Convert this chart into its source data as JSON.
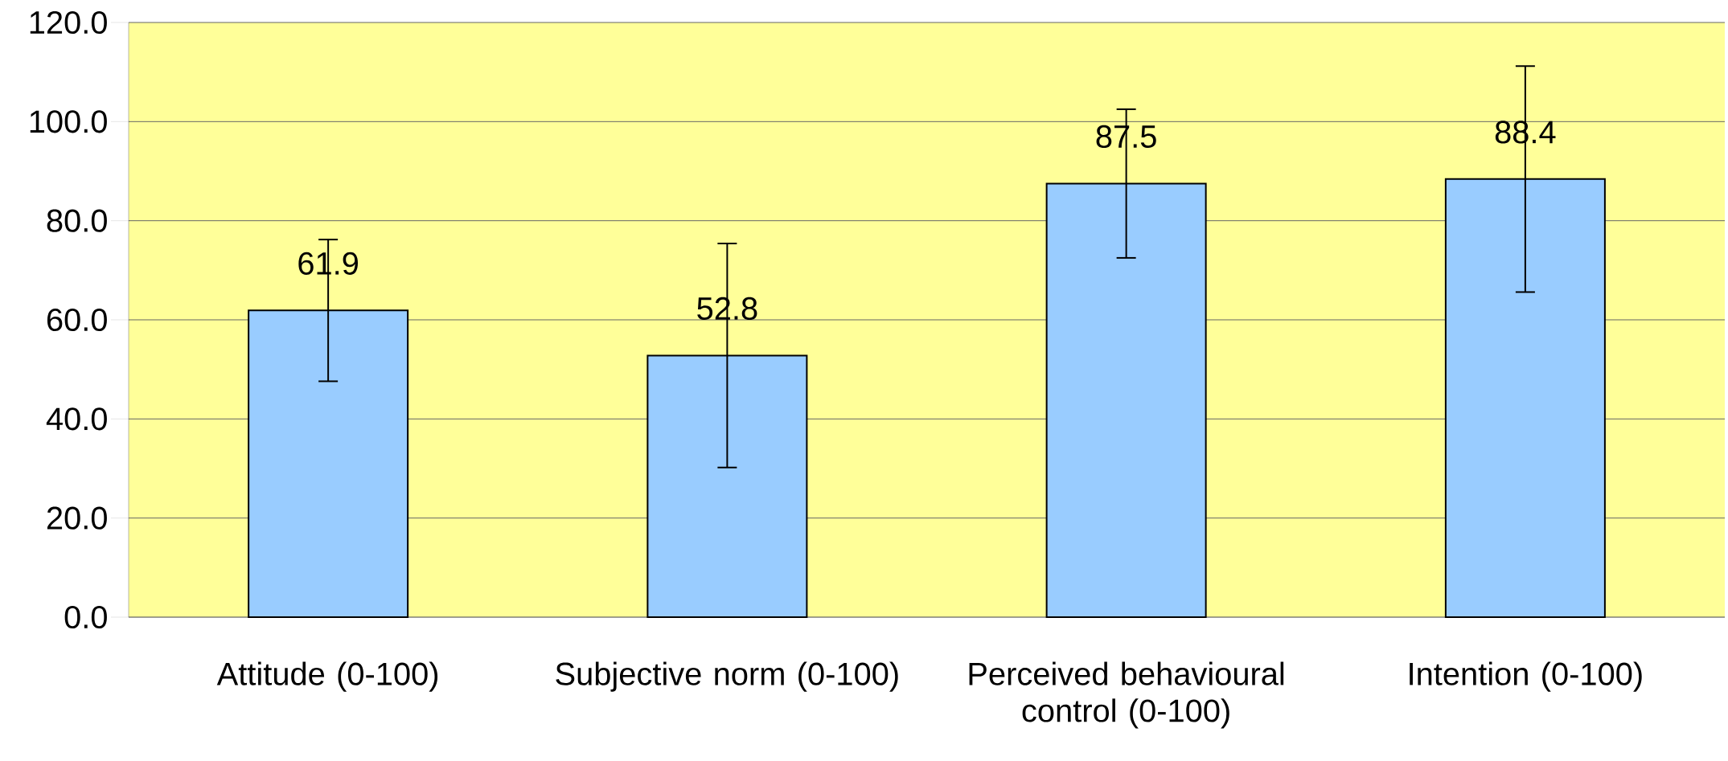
{
  "chart_data": {
    "type": "bar",
    "categories": [
      "Attitude (0-100)",
      "Subjective norm (0-100)",
      "Perceived behavioural control (0-100)",
      "Intention (0-100)"
    ],
    "values": [
      61.9,
      52.8,
      87.5,
      88.4
    ],
    "errors": [
      14.3,
      22.6,
      15.0,
      22.8
    ],
    "color": "#99ccff",
    "data_labels": true,
    "grid": "y",
    "ylim": [
      0,
      120
    ],
    "yticks": [
      {
        "value": 0,
        "label": "0.0"
      },
      {
        "value": 20,
        "label": "20.0"
      },
      {
        "value": 40,
        "label": "40.0"
      },
      {
        "value": 60,
        "label": "60.0"
      },
      {
        "value": 80,
        "label": "80.0"
      },
      {
        "value": 100,
        "label": "100.0"
      },
      {
        "value": 120,
        "label": "120.0"
      }
    ]
  }
}
